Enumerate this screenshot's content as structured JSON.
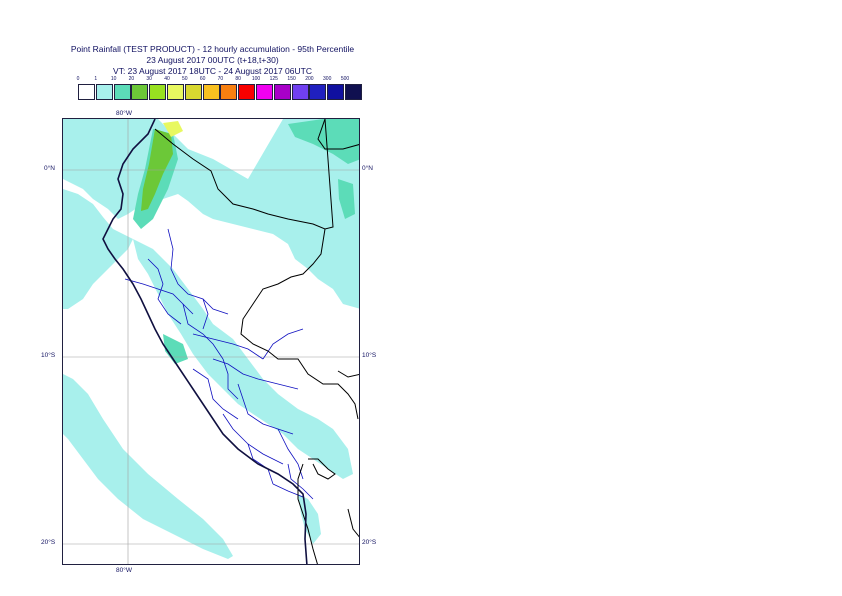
{
  "header": {
    "title_line1": "Point Rainfall (TEST PRODUCT) - 12 hourly accumulation - 95th Percentile",
    "title_line2": "23 August 2017 00UTC (t+18,t+30)",
    "title_line3": "VT: 23 August 2017 18UTC - 24 August 2017 06UTC"
  },
  "legend": {
    "thresholds": [
      "0",
      "1",
      "10",
      "20",
      "30",
      "40",
      "50",
      "60",
      "70",
      "80",
      "100",
      "125",
      "150",
      "200",
      "300",
      "500"
    ],
    "colors": [
      "#ffffff",
      "#a8f0ec",
      "#5cdcb8",
      "#6cc838",
      "#98e020",
      "#e8f860",
      "#d8d830",
      "#f8c020",
      "#f88010",
      "#f80000",
      "#f000f0",
      "#a800c8",
      "#7040f0",
      "#2020c0",
      "#1010a0",
      "#101050"
    ]
  },
  "map": {
    "lon_labels": [
      "80°W",
      "80°W"
    ],
    "lat_labels": [
      "0°N",
      "10°S",
      "20°S"
    ],
    "lat_labels_right": [
      "0°N",
      "10°S",
      "20°S"
    ],
    "colors": {
      "coast": "#101040",
      "borders": "#000000",
      "admin": "#1010c0",
      "grid": "#a0a0a0",
      "rain_light": "#a8f0ec",
      "rain_med": "#5cdcb8",
      "rain_green": "#6cc838",
      "rain_yellow": "#e8f860"
    }
  }
}
